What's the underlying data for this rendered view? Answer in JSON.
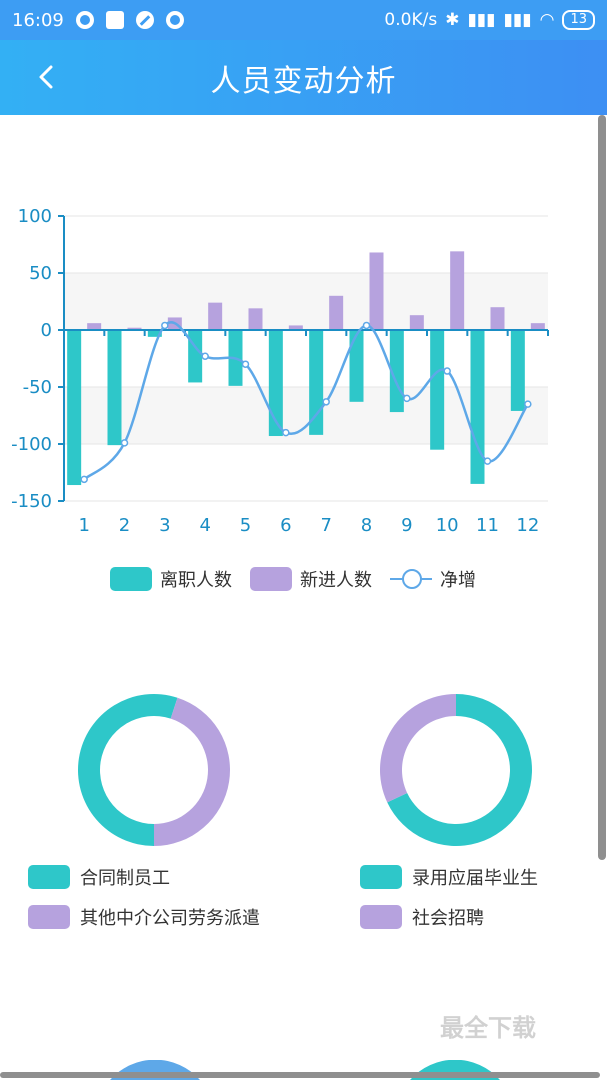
{
  "status_bar": {
    "time": "16:09",
    "network_speed": "0.0K/s",
    "battery": "13"
  },
  "header": {
    "title": "人员变动分析",
    "back_icon": "chevron-left-icon"
  },
  "chart_data": [
    {
      "type": "bar",
      "categories": [
        "1",
        "2",
        "3",
        "4",
        "5",
        "6",
        "7",
        "8",
        "9",
        "10",
        "11",
        "12"
      ],
      "series": [
        {
          "name": "离职人数",
          "type": "bar",
          "color": "#2ec7c9",
          "values": [
            -136,
            -101,
            -6,
            -46,
            -49,
            -93,
            -92,
            -63,
            -72,
            -105,
            -135,
            -71
          ]
        },
        {
          "name": "新进人数",
          "type": "bar",
          "color": "#b6a2de",
          "values": [
            6,
            2,
            11,
            24,
            19,
            4,
            30,
            68,
            13,
            69,
            20,
            6
          ]
        },
        {
          "name": "净增",
          "type": "line",
          "color": "#5ea8e8",
          "values": [
            -131,
            -99,
            4,
            -23,
            -30,
            -90,
            -63,
            4,
            -60,
            -36,
            -115,
            -65
          ]
        }
      ],
      "ylim": [
        -150,
        100
      ],
      "yticks": [
        "100",
        "50",
        "0",
        "-50",
        "-100",
        "-150"
      ],
      "legend_position": "bottom"
    },
    {
      "type": "pie",
      "labels": [
        "合同制员工",
        "其他中介公司劳务派遣"
      ],
      "values": [
        55,
        45
      ],
      "colors": [
        "#2ec7c9",
        "#b6a2de"
      ]
    },
    {
      "type": "pie",
      "labels": [
        "录用应届毕业生",
        "社会招聘"
      ],
      "values": [
        68,
        32
      ],
      "colors": [
        "#2ec7c9",
        "#b6a2de"
      ]
    }
  ],
  "watermark": "最全下载"
}
